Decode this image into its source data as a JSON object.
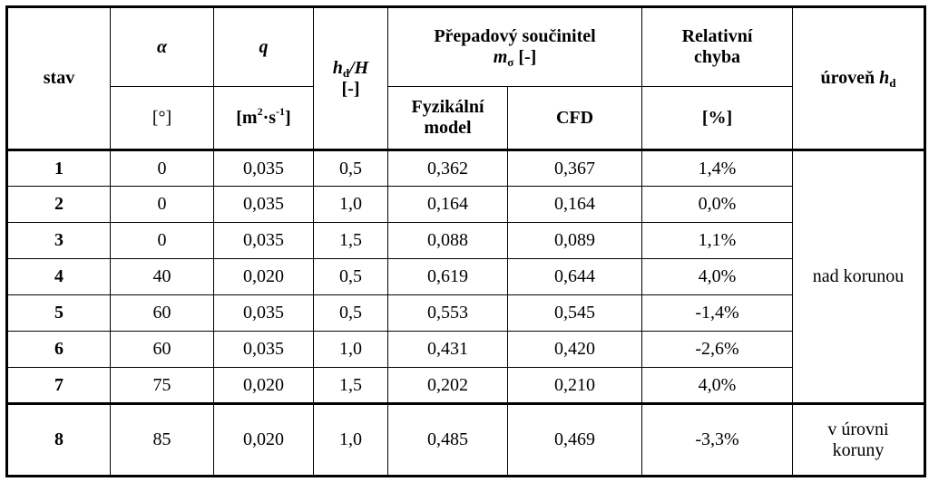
{
  "header": {
    "stav": "stav",
    "alpha_symbol": "α",
    "alpha_unit": "[°]",
    "q_symbol": "q",
    "q_unit_base": "[m",
    "q_unit_exp1": "2",
    "q_unit_mid": "·s",
    "q_unit_exp2": "-1",
    "q_unit_end": "]",
    "hd_h": "h",
    "hd_sub": "d",
    "hd_over": "/H",
    "hd_unit": "[-]",
    "coef_title": "Přepadový součinitel",
    "coef_m": "m",
    "coef_sub": "σ",
    "coef_unit": "[-]",
    "phys_line1": "Fyzikální",
    "phys_line2": "model",
    "cfd": "CFD",
    "rel_line1": "Relativní",
    "rel_line2": "chyba",
    "rel_unit": "[%]",
    "level_prefix": "úroveň",
    "level_h": "h",
    "level_sub": "d"
  },
  "rows": [
    {
      "stav": "1",
      "alpha": "0",
      "q": "0,035",
      "hdH": "0,5",
      "phys": "0,362",
      "cfd": "0,367",
      "err": "1,4%"
    },
    {
      "stav": "2",
      "alpha": "0",
      "q": "0,035",
      "hdH": "1,0",
      "phys": "0,164",
      "cfd": "0,164",
      "err": "0,0%"
    },
    {
      "stav": "3",
      "alpha": "0",
      "q": "0,035",
      "hdH": "1,5",
      "phys": "0,088",
      "cfd": "0,089",
      "err": "1,1%"
    },
    {
      "stav": "4",
      "alpha": "40",
      "q": "0,020",
      "hdH": "0,5",
      "phys": "0,619",
      "cfd": "0,644",
      "err": "4,0%"
    },
    {
      "stav": "5",
      "alpha": "60",
      "q": "0,035",
      "hdH": "0,5",
      "phys": "0,553",
      "cfd": "0,545",
      "err": "-1,4%"
    },
    {
      "stav": "6",
      "alpha": "60",
      "q": "0,035",
      "hdH": "1,0",
      "phys": "0,431",
      "cfd": "0,420",
      "err": "-2,6%"
    },
    {
      "stav": "7",
      "alpha": "75",
      "q": "0,020",
      "hdH": "1,5",
      "phys": "0,202",
      "cfd": "0,210",
      "err": "4,0%"
    },
    {
      "stav": "8",
      "alpha": "85",
      "q": "0,020",
      "hdH": "1,0",
      "phys": "0,485",
      "cfd": "0,469",
      "err": "-3,3%"
    }
  ],
  "levels": {
    "above_crest": "nad korunou",
    "at_crest_line1": "v úrovni",
    "at_crest_line2": "koruny"
  }
}
